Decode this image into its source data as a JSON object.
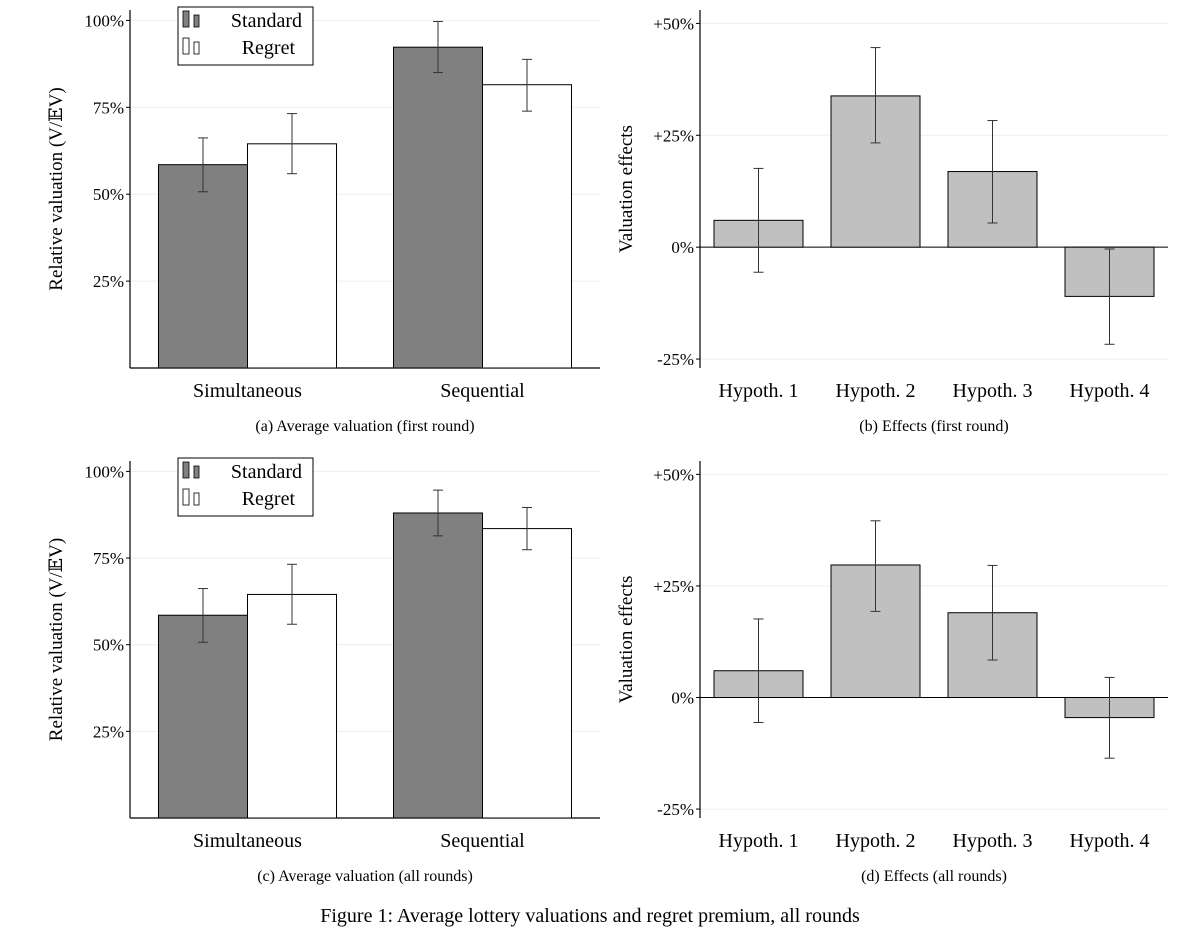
{
  "figure_caption": "Figure 1: Average lottery valuations and regret premium, all rounds",
  "legend": {
    "standard": "Standard",
    "regret": "Regret"
  },
  "colors": {
    "standard": "#808080",
    "regret": "#ffffff",
    "effect": "#c0c0c0",
    "axis": "#000000",
    "grid": "#eeeeee"
  },
  "chart_data": [
    {
      "id": "a",
      "type": "bar",
      "caption": "(a) Average valuation (first round)",
      "ylabel": "Relative valuation (V/𝔼V)",
      "categories": [
        "Simultaneous",
        "Sequential"
      ],
      "series": [
        {
          "name": "Standard",
          "values": [
            58.5,
            92.3
          ],
          "err_low": [
            50.7,
            85.0
          ],
          "err_high": [
            66.2,
            99.7
          ]
        },
        {
          "name": "Regret",
          "values": [
            64.5,
            81.5
          ],
          "err_low": [
            55.9,
            73.9
          ],
          "err_high": [
            73.2,
            88.8
          ]
        }
      ],
      "ylim": [
        0,
        103
      ],
      "yticks": [
        25,
        50,
        75,
        100
      ],
      "ytick_labels": [
        "25%",
        "50%",
        "75%",
        "100%"
      ],
      "legend_position": "top-left",
      "grid": true
    },
    {
      "id": "b",
      "type": "bar",
      "caption": "(b) Effects (first round)",
      "ylabel": "Valuation effects",
      "categories": [
        "Hypoth. 1",
        "Hypoth. 2",
        "Hypoth. 3",
        "Hypoth. 4"
      ],
      "values": [
        6.0,
        33.8,
        16.9,
        -11.0
      ],
      "err_low": [
        -5.6,
        23.3,
        5.4,
        -21.7
      ],
      "err_high": [
        17.6,
        44.6,
        28.3,
        -0.4
      ],
      "ylim": [
        -27,
        53
      ],
      "yticks": [
        -25,
        0,
        25,
        50
      ],
      "ytick_labels": [
        "-25%",
        "0%",
        "+25%",
        "+50%"
      ],
      "grid": true
    },
    {
      "id": "c",
      "type": "bar",
      "caption": "(c) Average valuation (all rounds)",
      "ylabel": "Relative valuation (V/𝔼V)",
      "categories": [
        "Simultaneous",
        "Sequential"
      ],
      "series": [
        {
          "name": "Standard",
          "values": [
            58.5,
            88.0
          ],
          "err_low": [
            50.7,
            81.4
          ],
          "err_high": [
            66.2,
            94.6
          ]
        },
        {
          "name": "Regret",
          "values": [
            64.5,
            83.5
          ],
          "err_low": [
            55.9,
            77.4
          ],
          "err_high": [
            73.2,
            89.6
          ]
        }
      ],
      "ylim": [
        0,
        103
      ],
      "yticks": [
        25,
        50,
        75,
        100
      ],
      "ytick_labels": [
        "25%",
        "50%",
        "75%",
        "100%"
      ],
      "legend_position": "top-left",
      "grid": true
    },
    {
      "id": "d",
      "type": "bar",
      "caption": "(d) Effects (all rounds)",
      "ylabel": "Valuation effects",
      "categories": [
        "Hypoth. 1",
        "Hypoth. 2",
        "Hypoth. 3",
        "Hypoth. 4"
      ],
      "values": [
        6.0,
        29.7,
        19.0,
        -4.5
      ],
      "err_low": [
        -5.6,
        19.3,
        8.4,
        -13.6
      ],
      "err_high": [
        17.6,
        39.6,
        29.6,
        4.5
      ],
      "ylim": [
        -27,
        53
      ],
      "yticks": [
        -25,
        0,
        25,
        50
      ],
      "ytick_labels": [
        "-25%",
        "0%",
        "+25%",
        "+50%"
      ],
      "grid": true
    }
  ]
}
